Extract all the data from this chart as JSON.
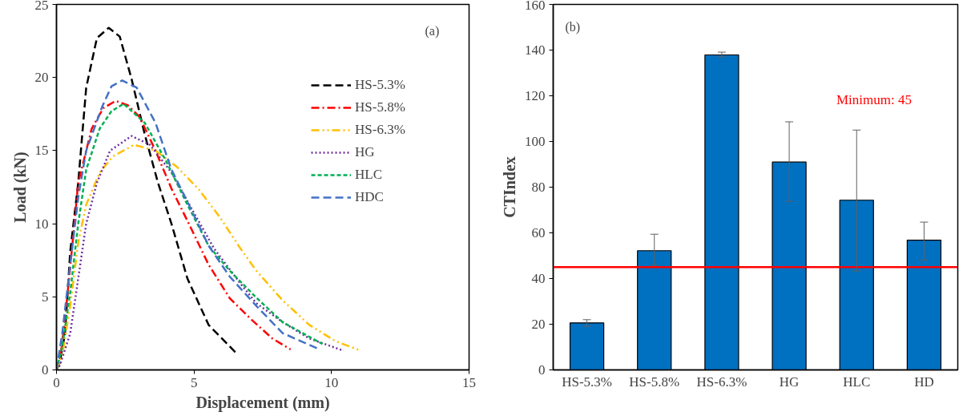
{
  "chart_data": [
    {
      "type": "line",
      "xlabel": "Displacement (mm)",
      "ylabel": "Load (kN)",
      "xlim": [
        0,
        15
      ],
      "ylim": [
        0,
        25
      ],
      "xticks": [
        0,
        5,
        10,
        15
      ],
      "yticks": [
        0,
        5,
        10,
        15,
        20,
        25
      ],
      "grid": false,
      "legend": "top right",
      "annotations": [
        "(a)"
      ],
      "series": [
        {
          "name": "HS-5.3%",
          "color": "#000000",
          "line_style": "dashed",
          "x": [
            0,
            0.12,
            0.31,
            0.5,
            0.79,
            1.08,
            1.47,
            1.9,
            2.3,
            2.73,
            3.21,
            3.69,
            4.18,
            4.76,
            5.53,
            6.55
          ],
          "values": [
            0,
            0.5,
            2.5,
            8.1,
            12.8,
            19.3,
            22.7,
            23.4,
            22.8,
            19.9,
            16.1,
            12.8,
            10.0,
            6.25,
            3.08,
            1.12
          ]
        },
        {
          "name": "HS-5.8%",
          "color": "#ff0000",
          "line_style": "dashdot",
          "x": [
            0,
            0.12,
            0.31,
            0.6,
            0.79,
            1.28,
            1.7,
            2.15,
            2.6,
            3.02,
            3.6,
            4.18,
            4.76,
            5.53,
            6.3,
            7.08,
            7.85,
            8.51
          ],
          "values": [
            0,
            0.6,
            3.45,
            9.0,
            12.8,
            16.5,
            17.9,
            18.4,
            18.1,
            17.3,
            15.0,
            12.4,
            10.2,
            7.2,
            4.9,
            3.45,
            2.15,
            1.4
          ]
        },
        {
          "name": "HS-6.3%",
          "color": "#ffc000",
          "line_style": "dashdotdot",
          "x": [
            0,
            0.21,
            0.5,
            0.79,
            1.08,
            1.57,
            2.05,
            2.82,
            3.6,
            4.37,
            5.15,
            5.92,
            6.69,
            7.26,
            8.22,
            9.19,
            10.15,
            11.07
          ],
          "values": [
            0,
            1.0,
            4.4,
            8.7,
            11.3,
            13.5,
            14.6,
            15.4,
            15.0,
            13.9,
            12.4,
            10.5,
            8.3,
            6.8,
            4.76,
            3.08,
            1.96,
            1.31
          ]
        },
        {
          "name": "HG",
          "color": "#7030a0",
          "line_style": "dotted",
          "x": [
            0,
            0.12,
            0.5,
            0.79,
            1.08,
            1.47,
            1.95,
            2.73,
            3.4,
            4.18,
            4.95,
            5.73,
            6.69,
            7.26,
            8.22,
            9.19,
            10.44
          ],
          "values": [
            0,
            0.3,
            2.5,
            6.25,
            10.0,
            12.8,
            15.0,
            16.0,
            15.4,
            13.5,
            10.9,
            8.3,
            5.9,
            4.57,
            3.27,
            2.15,
            1.31
          ]
        },
        {
          "name": "HLC",
          "color": "#00b050",
          "line_style": "dashed_short",
          "x": [
            0,
            0.21,
            0.5,
            0.79,
            1.08,
            1.57,
            2.0,
            2.44,
            3.21,
            3.98,
            4.76,
            5.53,
            6.29,
            7.26,
            8.22,
            9.67
          ],
          "values": [
            0,
            1.6,
            5.3,
            10.0,
            13.7,
            16.5,
            17.7,
            18.2,
            16.9,
            14.3,
            11.3,
            8.5,
            6.8,
            4.95,
            3.27,
            1.77
          ]
        },
        {
          "name": "HDC",
          "color": "#4472c4",
          "line_style": "dashed",
          "x": [
            0,
            0.21,
            0.5,
            0.79,
            1.08,
            1.66,
            2.0,
            2.39,
            2.92,
            3.6,
            4.18,
            4.76,
            5.53,
            6.29,
            7.26,
            8.22,
            9.57
          ],
          "values": [
            0,
            2.5,
            7.2,
            11.8,
            15.0,
            18.0,
            19.4,
            19.8,
            19.3,
            16.9,
            13.7,
            11.5,
            8.5,
            6.4,
            4.39,
            2.52,
            1.4
          ]
        }
      ]
    },
    {
      "type": "bar",
      "ylabel": "CTIndex",
      "categories": [
        "HS-5.3%",
        "HS-5.8%",
        "HS-6.3%",
        "HG",
        "HLC",
        "HD"
      ],
      "ylim": [
        0,
        160
      ],
      "yticks": [
        0,
        20,
        40,
        60,
        80,
        100,
        120,
        140,
        160
      ],
      "grid": false,
      "annotations": [
        "(b)"
      ],
      "series": [
        {
          "color": "#0070c0",
          "values": [
            20.6,
            52.2,
            137.9,
            91.0,
            74.3,
            56.8
          ],
          "errors": [
            [
              19.1,
              22.0
            ],
            [
              45.7,
              59.4
            ],
            [
              137.0,
              139.1
            ],
            [
              73.8,
              108.6
            ],
            [
              43.3,
              105.0
            ],
            [
              48.1,
              64.7
            ]
          ]
        }
      ],
      "ref_lines": [
        {
          "axis": "y",
          "value": 45,
          "label": "Minimum:  45",
          "color": "#ff0000"
        }
      ]
    }
  ]
}
